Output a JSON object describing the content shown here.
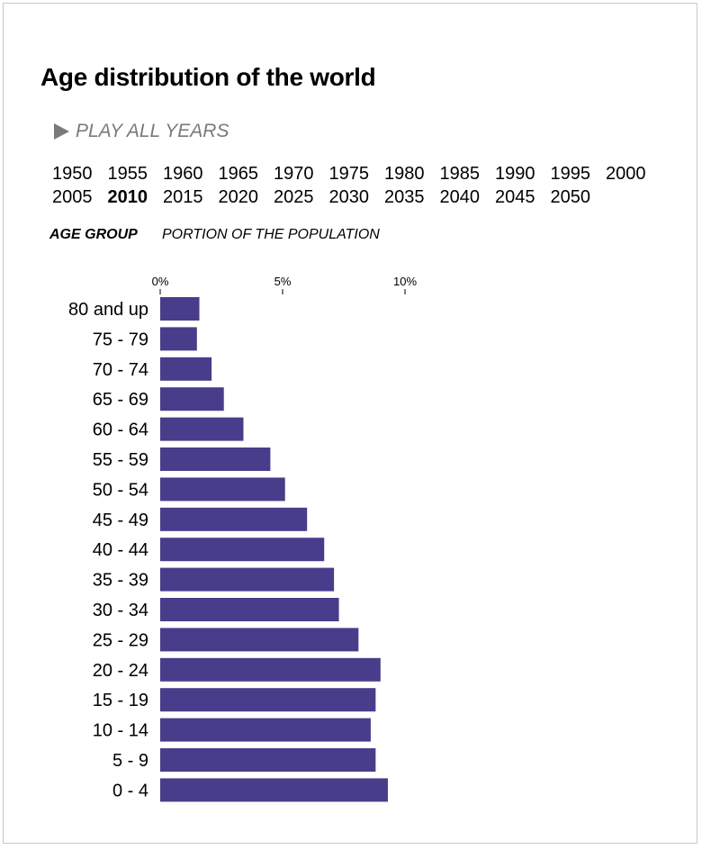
{
  "title": "Age distribution of the world",
  "play_label": "PLAY ALL YEARS",
  "play_icon": "play-icon",
  "years": [
    "1950",
    "1955",
    "1960",
    "1965",
    "1970",
    "1975",
    "1980",
    "1985",
    "1990",
    "1995",
    "2000",
    "2005",
    "2010",
    "2015",
    "2020",
    "2025",
    "2030",
    "2035",
    "2040",
    "2045",
    "2050"
  ],
  "selected_year": "2010",
  "headers": {
    "age_group": "AGE GROUP",
    "portion": "PORTION OF THE POPULATION"
  },
  "colors": {
    "bar": "#483d8b",
    "play": "#7a7a7a"
  },
  "chart_data": {
    "type": "bar",
    "orientation": "horizontal",
    "categories": [
      "80 and up",
      "75 - 79",
      "70 - 74",
      "65 - 69",
      "60 - 64",
      "55 - 59",
      "50 - 54",
      "45 - 49",
      "40 - 44",
      "35 - 39",
      "30 - 34",
      "25 - 29",
      "20 - 24",
      "15 - 19",
      "10 - 14",
      "5 - 9",
      "0 - 4"
    ],
    "values": [
      1.6,
      1.5,
      2.1,
      2.6,
      3.4,
      4.5,
      5.1,
      6.0,
      6.7,
      7.1,
      7.3,
      8.1,
      9.0,
      8.8,
      8.6,
      8.8,
      9.3
    ],
    "xticks": [
      0,
      5,
      10
    ],
    "xtick_labels": [
      "0%",
      "5%",
      "10%"
    ],
    "xlim": [
      0,
      10
    ]
  }
}
